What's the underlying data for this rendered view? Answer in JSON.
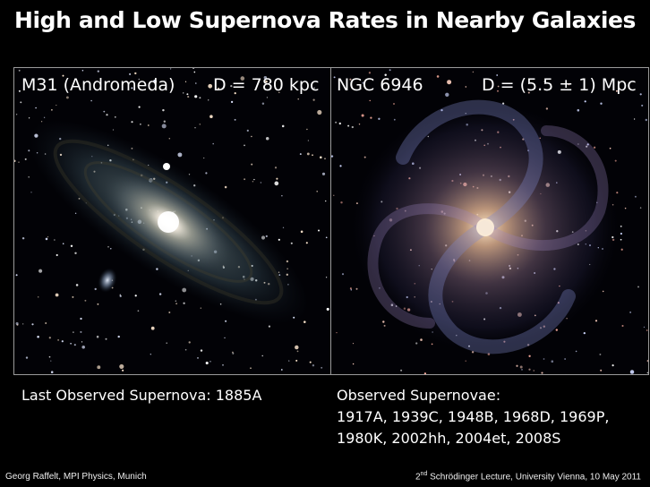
{
  "slide": {
    "title": "High and Low Supernova Rates in Nearby Galaxies"
  },
  "left_panel": {
    "name": "M31 (Andromeda)",
    "distance": "D = 780 kpc",
    "caption": "Last Observed Supernova: 1885A"
  },
  "right_panel": {
    "name": "NGC 6946",
    "distance": "D = (5.5 ± 1) Mpc",
    "caption_line1": "Observed Supernovae:",
    "caption_line2": "1917A, 1939C, 1948B, 1968D, 1969P,",
    "caption_line3": "1980K, 2002hh, 2004et, 2008S"
  },
  "footer": {
    "author": "Georg Raffelt, MPI Physics, Munich",
    "event_ordinal": "2",
    "event_ordinal_suffix": "nd",
    "event_rest": " Schrödinger Lecture, University Vienna, 10 May 2011"
  }
}
